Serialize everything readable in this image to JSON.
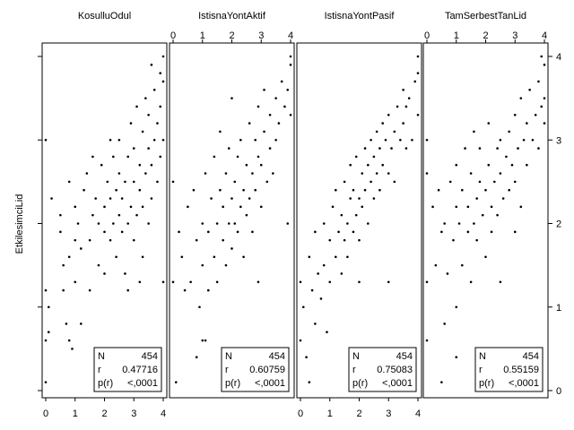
{
  "chart_data": {
    "type": "scatter",
    "title": "",
    "ylabel": "EtkilesimciLid",
    "xlim": [
      0,
      4
    ],
    "ylim": [
      0,
      4
    ],
    "xticks": [
      0,
      1,
      2,
      3,
      4
    ],
    "yticks": [
      0,
      1,
      2,
      3,
      4
    ],
    "panels": [
      {
        "name": "KosulluOdul",
        "stats": {
          "N": "454",
          "r": "0.47716",
          "p": "<,0001"
        },
        "points": [
          [
            0.0,
            0.1
          ],
          [
            0.0,
            0.6
          ],
          [
            0.0,
            1.2
          ],
          [
            0.1,
            0.7
          ],
          [
            0.1,
            1.0
          ],
          [
            0.0,
            3.0
          ],
          [
            0.2,
            2.3
          ],
          [
            0.5,
            1.9
          ],
          [
            0.5,
            2.1
          ],
          [
            0.6,
            1.2
          ],
          [
            0.6,
            1.5
          ],
          [
            0.7,
            0.8
          ],
          [
            0.8,
            1.6
          ],
          [
            0.8,
            2.5
          ],
          [
            0.9,
            0.5
          ],
          [
            1.0,
            1.3
          ],
          [
            1.0,
            1.8
          ],
          [
            1.0,
            2.2
          ],
          [
            1.1,
            2.0
          ],
          [
            1.2,
            1.7
          ],
          [
            1.3,
            2.4
          ],
          [
            1.4,
            2.6
          ],
          [
            1.5,
            1.2
          ],
          [
            1.5,
            1.8
          ],
          [
            1.6,
            2.1
          ],
          [
            1.7,
            2.3
          ],
          [
            1.8,
            1.5
          ],
          [
            1.8,
            2.0
          ],
          [
            1.9,
            2.7
          ],
          [
            2.0,
            1.4
          ],
          [
            2.0,
            1.9
          ],
          [
            2.0,
            2.2
          ],
          [
            2.1,
            2.5
          ],
          [
            2.2,
            1.8
          ],
          [
            2.2,
            2.3
          ],
          [
            2.3,
            2.0
          ],
          [
            2.3,
            2.8
          ],
          [
            2.4,
            1.6
          ],
          [
            2.4,
            2.4
          ],
          [
            2.5,
            2.1
          ],
          [
            2.5,
            2.6
          ],
          [
            2.5,
            3.0
          ],
          [
            2.6,
            1.9
          ],
          [
            2.6,
            2.3
          ],
          [
            2.7,
            2.5
          ],
          [
            2.7,
            1.4
          ],
          [
            2.8,
            2.0
          ],
          [
            2.8,
            2.8
          ],
          [
            2.9,
            2.2
          ],
          [
            2.9,
            3.2
          ],
          [
            3.0,
            1.8
          ],
          [
            3.0,
            2.5
          ],
          [
            3.0,
            2.9
          ],
          [
            3.1,
            2.1
          ],
          [
            3.1,
            3.4
          ],
          [
            3.2,
            2.4
          ],
          [
            3.2,
            2.7
          ],
          [
            3.3,
            1.6
          ],
          [
            3.3,
            2.2
          ],
          [
            3.3,
            3.1
          ],
          [
            3.4,
            2.6
          ],
          [
            3.4,
            3.5
          ],
          [
            3.5,
            2.0
          ],
          [
            3.5,
            2.9
          ],
          [
            3.5,
            3.3
          ],
          [
            3.6,
            2.3
          ],
          [
            3.6,
            2.7
          ],
          [
            3.7,
            3.0
          ],
          [
            3.7,
            3.6
          ],
          [
            3.8,
            2.5
          ],
          [
            3.8,
            3.2
          ],
          [
            3.9,
            2.8
          ],
          [
            3.9,
            3.4
          ],
          [
            4.0,
            3.0
          ],
          [
            4.0,
            3.7
          ],
          [
            4.0,
            4.0
          ],
          [
            4.0,
            1.3
          ],
          [
            3.2,
            1.3
          ],
          [
            2.8,
            1.2
          ],
          [
            1.2,
            0.8
          ],
          [
            0.8,
            0.6
          ],
          [
            1.6,
            2.8
          ],
          [
            2.2,
            3.0
          ],
          [
            3.6,
            3.9
          ],
          [
            3.9,
            3.8
          ]
        ]
      },
      {
        "name": "IstisnaYontAktif",
        "stats": {
          "N": "454",
          "r": "0.60759",
          "p": "<,0001"
        },
        "points": [
          [
            0.0,
            1.3
          ],
          [
            0.0,
            2.5
          ],
          [
            0.1,
            0.1
          ],
          [
            0.2,
            1.9
          ],
          [
            0.3,
            1.6
          ],
          [
            0.5,
            2.2
          ],
          [
            0.6,
            1.3
          ],
          [
            0.7,
            2.4
          ],
          [
            0.8,
            1.8
          ],
          [
            0.9,
            1.0
          ],
          [
            1.0,
            0.6
          ],
          [
            1.0,
            1.5
          ],
          [
            1.0,
            2.0
          ],
          [
            1.1,
            2.6
          ],
          [
            1.2,
            1.2
          ],
          [
            1.2,
            1.9
          ],
          [
            1.3,
            2.3
          ],
          [
            1.4,
            1.6
          ],
          [
            1.4,
            2.8
          ],
          [
            1.5,
            2.0
          ],
          [
            1.5,
            1.3
          ],
          [
            1.6,
            2.4
          ],
          [
            1.6,
            3.1
          ],
          [
            1.7,
            1.8
          ],
          [
            1.7,
            2.2
          ],
          [
            1.8,
            2.6
          ],
          [
            1.8,
            1.5
          ],
          [
            1.9,
            2.0
          ],
          [
            1.9,
            2.9
          ],
          [
            2.0,
            1.7
          ],
          [
            2.0,
            2.3
          ],
          [
            2.1,
            2.5
          ],
          [
            2.1,
            2.0
          ],
          [
            2.2,
            2.8
          ],
          [
            2.2,
            1.9
          ],
          [
            2.3,
            2.2
          ],
          [
            2.3,
            3.0
          ],
          [
            2.4,
            2.4
          ],
          [
            2.4,
            1.6
          ],
          [
            2.5,
            2.7
          ],
          [
            2.5,
            2.1
          ],
          [
            2.6,
            3.2
          ],
          [
            2.6,
            2.3
          ],
          [
            2.7,
            2.6
          ],
          [
            2.7,
            1.9
          ],
          [
            2.8,
            3.0
          ],
          [
            2.8,
            2.4
          ],
          [
            2.9,
            2.8
          ],
          [
            2.9,
            3.4
          ],
          [
            3.0,
            2.2
          ],
          [
            3.0,
            2.7
          ],
          [
            3.1,
            3.1
          ],
          [
            3.1,
            3.6
          ],
          [
            3.2,
            2.5
          ],
          [
            3.3,
            2.9
          ],
          [
            3.3,
            3.3
          ],
          [
            3.4,
            2.6
          ],
          [
            3.5,
            3.0
          ],
          [
            3.5,
            3.5
          ],
          [
            3.6,
            3.2
          ],
          [
            3.7,
            3.7
          ],
          [
            3.8,
            3.4
          ],
          [
            3.9,
            3.6
          ],
          [
            4.0,
            3.9
          ],
          [
            4.0,
            4.0
          ],
          [
            4.0,
            3.3
          ],
          [
            3.9,
            2.0
          ],
          [
            2.9,
            1.3
          ],
          [
            0.8,
            0.4
          ],
          [
            1.1,
            0.6
          ],
          [
            2.0,
            3.5
          ],
          [
            0.4,
            1.2
          ]
        ]
      },
      {
        "name": "IstisnaYontPasif",
        "stats": {
          "N": "454",
          "r": "0.75083",
          "p": "<,0001"
        },
        "points": [
          [
            0.0,
            0.6
          ],
          [
            0.0,
            1.3
          ],
          [
            0.1,
            1.0
          ],
          [
            0.2,
            0.4
          ],
          [
            0.3,
            1.6
          ],
          [
            0.4,
            1.2
          ],
          [
            0.5,
            1.9
          ],
          [
            0.5,
            0.8
          ],
          [
            0.6,
            1.4
          ],
          [
            0.7,
            1.1
          ],
          [
            0.8,
            2.0
          ],
          [
            0.8,
            1.5
          ],
          [
            0.9,
            0.7
          ],
          [
            1.0,
            1.8
          ],
          [
            1.0,
            1.3
          ],
          [
            1.1,
            2.2
          ],
          [
            1.2,
            1.6
          ],
          [
            1.2,
            2.4
          ],
          [
            1.3,
            1.9
          ],
          [
            1.4,
            1.4
          ],
          [
            1.4,
            2.1
          ],
          [
            1.5,
            1.8
          ],
          [
            1.5,
            2.5
          ],
          [
            1.6,
            2.0
          ],
          [
            1.6,
            1.6
          ],
          [
            1.7,
            2.3
          ],
          [
            1.7,
            2.7
          ],
          [
            1.8,
            1.9
          ],
          [
            1.8,
            2.4
          ],
          [
            1.9,
            2.1
          ],
          [
            1.9,
            2.8
          ],
          [
            2.0,
            2.3
          ],
          [
            2.0,
            1.8
          ],
          [
            2.1,
            2.6
          ],
          [
            2.1,
            2.2
          ],
          [
            2.2,
            2.9
          ],
          [
            2.2,
            2.4
          ],
          [
            2.3,
            2.0
          ],
          [
            2.3,
            2.7
          ],
          [
            2.4,
            2.5
          ],
          [
            2.4,
            3.0
          ],
          [
            2.5,
            2.3
          ],
          [
            2.5,
            2.8
          ],
          [
            2.6,
            2.6
          ],
          [
            2.6,
            3.1
          ],
          [
            2.7,
            2.4
          ],
          [
            2.7,
            2.9
          ],
          [
            2.8,
            2.7
          ],
          [
            2.8,
            3.2
          ],
          [
            2.9,
            3.0
          ],
          [
            3.0,
            2.6
          ],
          [
            3.0,
            3.3
          ],
          [
            3.1,
            2.9
          ],
          [
            3.2,
            3.1
          ],
          [
            3.2,
            2.5
          ],
          [
            3.3,
            3.4
          ],
          [
            3.4,
            3.0
          ],
          [
            3.5,
            3.2
          ],
          [
            3.5,
            3.6
          ],
          [
            3.6,
            3.4
          ],
          [
            3.7,
            3.5
          ],
          [
            3.8,
            3.0
          ],
          [
            3.9,
            3.7
          ],
          [
            4.0,
            3.8
          ],
          [
            4.0,
            4.0
          ],
          [
            4.0,
            3.3
          ],
          [
            3.6,
            2.9
          ],
          [
            3.0,
            1.3
          ],
          [
            0.3,
            0.1
          ],
          [
            2.0,
            1.3
          ]
        ]
      },
      {
        "name": "TamSerbestTanLid",
        "stats": {
          "N": "454",
          "r": "0.55159",
          "p": "<,0001"
        },
        "points": [
          [
            0.0,
            0.6
          ],
          [
            0.0,
            1.3
          ],
          [
            0.0,
            2.6
          ],
          [
            0.0,
            3.0
          ],
          [
            0.2,
            2.2
          ],
          [
            0.3,
            1.5
          ],
          [
            0.4,
            2.4
          ],
          [
            0.5,
            1.9
          ],
          [
            0.6,
            0.8
          ],
          [
            0.6,
            2.0
          ],
          [
            0.7,
            1.4
          ],
          [
            0.8,
            2.5
          ],
          [
            0.9,
            1.8
          ],
          [
            1.0,
            2.2
          ],
          [
            1.0,
            1.0
          ],
          [
            1.0,
            2.7
          ],
          [
            1.1,
            2.0
          ],
          [
            1.2,
            1.5
          ],
          [
            1.2,
            2.4
          ],
          [
            1.3,
            2.9
          ],
          [
            1.4,
            1.9
          ],
          [
            1.4,
            2.2
          ],
          [
            1.5,
            2.6
          ],
          [
            1.5,
            1.3
          ],
          [
            1.6,
            2.0
          ],
          [
            1.6,
            3.1
          ],
          [
            1.7,
            2.3
          ],
          [
            1.7,
            1.8
          ],
          [
            1.8,
            2.5
          ],
          [
            1.8,
            2.9
          ],
          [
            1.9,
            2.1
          ],
          [
            2.0,
            2.4
          ],
          [
            2.0,
            1.6
          ],
          [
            2.1,
            2.7
          ],
          [
            2.1,
            3.2
          ],
          [
            2.2,
            2.2
          ],
          [
            2.2,
            1.9
          ],
          [
            2.3,
            2.5
          ],
          [
            2.4,
            2.9
          ],
          [
            2.4,
            2.1
          ],
          [
            2.5,
            2.6
          ],
          [
            2.5,
            3.0
          ],
          [
            2.6,
            2.3
          ],
          [
            2.7,
            2.8
          ],
          [
            2.8,
            3.1
          ],
          [
            2.8,
            2.4
          ],
          [
            2.9,
            2.7
          ],
          [
            3.0,
            3.3
          ],
          [
            3.0,
            2.5
          ],
          [
            3.1,
            2.9
          ],
          [
            3.2,
            3.5
          ],
          [
            3.2,
            2.2
          ],
          [
            3.3,
            3.0
          ],
          [
            3.4,
            2.7
          ],
          [
            3.4,
            3.2
          ],
          [
            3.5,
            3.6
          ],
          [
            3.6,
            3.0
          ],
          [
            3.7,
            3.3
          ],
          [
            3.8,
            3.7
          ],
          [
            3.8,
            2.9
          ],
          [
            3.9,
            3.4
          ],
          [
            4.0,
            3.9
          ],
          [
            4.0,
            3.5
          ],
          [
            4.0,
            3.2
          ],
          [
            3.9,
            4.0
          ],
          [
            2.5,
            1.3
          ],
          [
            1.0,
            0.4
          ],
          [
            0.5,
            0.1
          ],
          [
            3.0,
            1.9
          ]
        ]
      }
    ]
  }
}
